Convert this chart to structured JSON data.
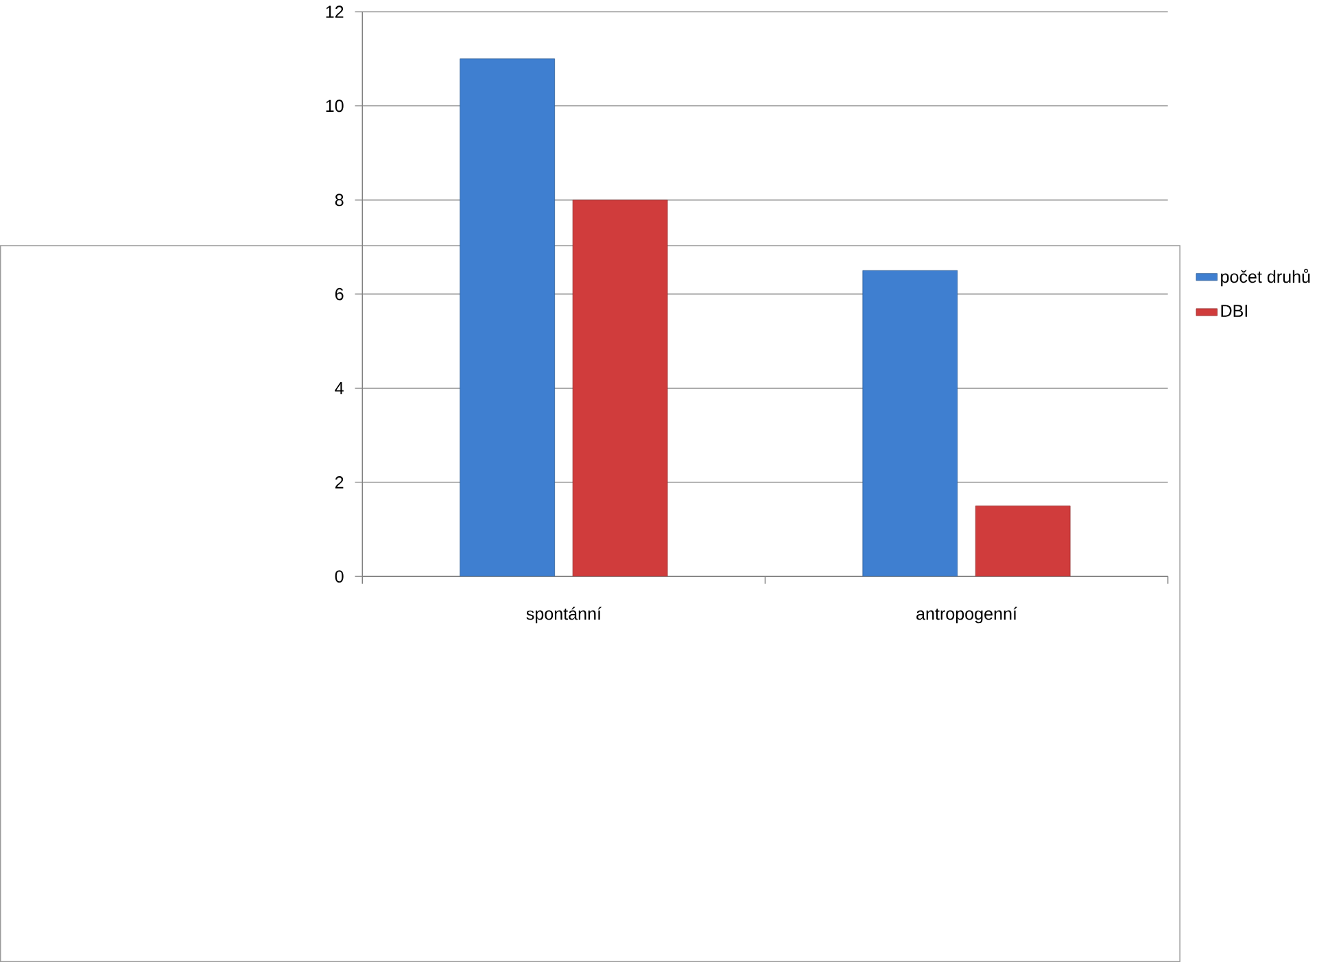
{
  "chart_data": {
    "type": "bar",
    "categories": [
      "spontánní",
      "antropogenní"
    ],
    "series": [
      {
        "name": "počet druhů",
        "color": "#3f7fd0",
        "values": [
          11,
          6.5
        ]
      },
      {
        "name": "DBI",
        "color": "#d03c3c",
        "values": [
          8,
          1.5
        ]
      }
    ],
    "ylim": [
      0,
      12
    ],
    "yticks": [
      0,
      2,
      4,
      6,
      8,
      10,
      12
    ],
    "grid": "y",
    "legend": "right"
  }
}
